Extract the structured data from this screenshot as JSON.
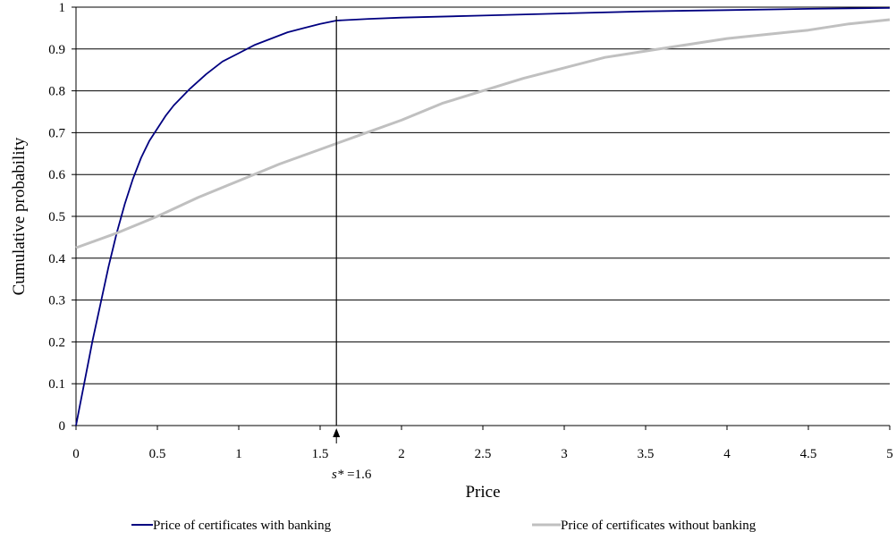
{
  "chart_data": {
    "type": "line",
    "title": "",
    "xlabel": "Price",
    "ylabel": "Cumulative probability",
    "xlim": [
      0,
      5
    ],
    "ylim": [
      0,
      1
    ],
    "x_ticks": [
      0,
      0.5,
      1,
      1.5,
      2,
      2.5,
      3,
      3.5,
      4,
      4.5,
      5
    ],
    "x_tick_labels": [
      "0",
      "0.5",
      "1",
      "1.5",
      "2",
      "2.5",
      "3",
      "3.5",
      "4",
      "4.5",
      "5"
    ],
    "y_ticks": [
      0,
      0.1,
      0.2,
      0.3,
      0.4,
      0.5,
      0.6,
      0.7,
      0.8,
      0.9,
      1
    ],
    "y_tick_labels": [
      "0",
      "0.1",
      "0.2",
      "0.3",
      "0.4",
      "0.5",
      "0.6",
      "0.7",
      "0.8",
      "0.9",
      "1"
    ],
    "grid": "horizontal",
    "legend_position": "bottom",
    "series": [
      {
        "name": "Price of certificates with banking",
        "color": "#000080",
        "x": [
          0,
          0.02,
          0.05,
          0.08,
          0.1,
          0.15,
          0.2,
          0.25,
          0.3,
          0.35,
          0.4,
          0.45,
          0.5,
          0.55,
          0.6,
          0.65,
          0.7,
          0.8,
          0.9,
          1.0,
          1.1,
          1.2,
          1.3,
          1.4,
          1.5,
          1.6,
          1.8,
          2.0,
          2.5,
          3.0,
          3.5,
          4.0,
          4.5,
          5.0
        ],
        "y": [
          0,
          0.04,
          0.1,
          0.16,
          0.2,
          0.29,
          0.38,
          0.46,
          0.53,
          0.59,
          0.64,
          0.68,
          0.71,
          0.74,
          0.765,
          0.785,
          0.805,
          0.84,
          0.87,
          0.89,
          0.91,
          0.925,
          0.94,
          0.95,
          0.96,
          0.968,
          0.972,
          0.975,
          0.98,
          0.985,
          0.99,
          0.993,
          0.996,
          0.998
        ]
      },
      {
        "name": "Price of certificates without banking",
        "color": "#c0c0c0",
        "x": [
          0,
          0.25,
          0.5,
          0.75,
          1.0,
          1.25,
          1.5,
          1.75,
          2.0,
          2.25,
          2.5,
          2.75,
          3.0,
          3.25,
          3.5,
          3.75,
          4.0,
          4.25,
          4.5,
          4.75,
          5.0
        ],
        "y": [
          0.425,
          0.46,
          0.5,
          0.545,
          0.585,
          0.625,
          0.66,
          0.695,
          0.73,
          0.77,
          0.8,
          0.83,
          0.855,
          0.88,
          0.895,
          0.91,
          0.925,
          0.935,
          0.945,
          0.96,
          0.97
        ]
      }
    ],
    "annotations": [
      {
        "type": "vertical-line",
        "x": 1.6,
        "label_symbol": "s*",
        "label_value": " =1.6"
      }
    ]
  }
}
